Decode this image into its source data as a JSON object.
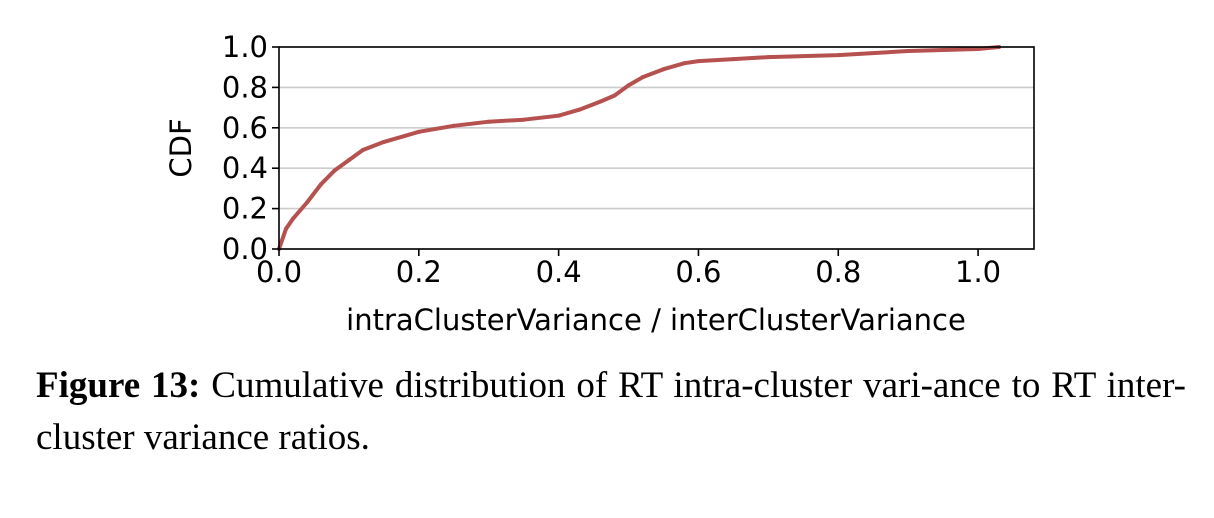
{
  "chart_data": {
    "type": "line",
    "title": "",
    "xlabel": "intraClusterVariance / interClusterVariance",
    "ylabel": "CDF",
    "xlim": [
      0.0,
      1.08
    ],
    "ylim": [
      0.0,
      1.0
    ],
    "x_ticks": [
      "0.0",
      "0.2",
      "0.4",
      "0.6",
      "0.8",
      "1.0"
    ],
    "y_ticks": [
      "0.0",
      "0.2",
      "0.4",
      "0.6",
      "0.8",
      "1.0"
    ],
    "x_tick_values": [
      0.0,
      0.2,
      0.4,
      0.6,
      0.8,
      1.0
    ],
    "y_tick_values": [
      0.0,
      0.2,
      0.4,
      0.6,
      0.8,
      1.0
    ],
    "grid": "horizontal",
    "series": [
      {
        "color": "#b5514f",
        "x": [
          0.0,
          0.01,
          0.02,
          0.04,
          0.06,
          0.08,
          0.1,
          0.12,
          0.15,
          0.18,
          0.2,
          0.25,
          0.3,
          0.35,
          0.4,
          0.43,
          0.46,
          0.48,
          0.5,
          0.52,
          0.55,
          0.58,
          0.6,
          0.65,
          0.7,
          0.8,
          0.9,
          1.0,
          1.03
        ],
        "y": [
          0.0,
          0.1,
          0.15,
          0.23,
          0.32,
          0.39,
          0.44,
          0.49,
          0.53,
          0.56,
          0.58,
          0.61,
          0.63,
          0.64,
          0.66,
          0.69,
          0.73,
          0.76,
          0.81,
          0.85,
          0.89,
          0.92,
          0.93,
          0.94,
          0.95,
          0.96,
          0.98,
          0.99,
          1.0
        ]
      }
    ]
  },
  "caption": {
    "label": "Figure 13:",
    "text": " Cumulative distribution of RT intra-cluster vari-ance to RT inter-cluster variance ratios."
  },
  "colors": {
    "line": "#b5514f",
    "grid": "#cccccc",
    "axes": "#000000"
  }
}
